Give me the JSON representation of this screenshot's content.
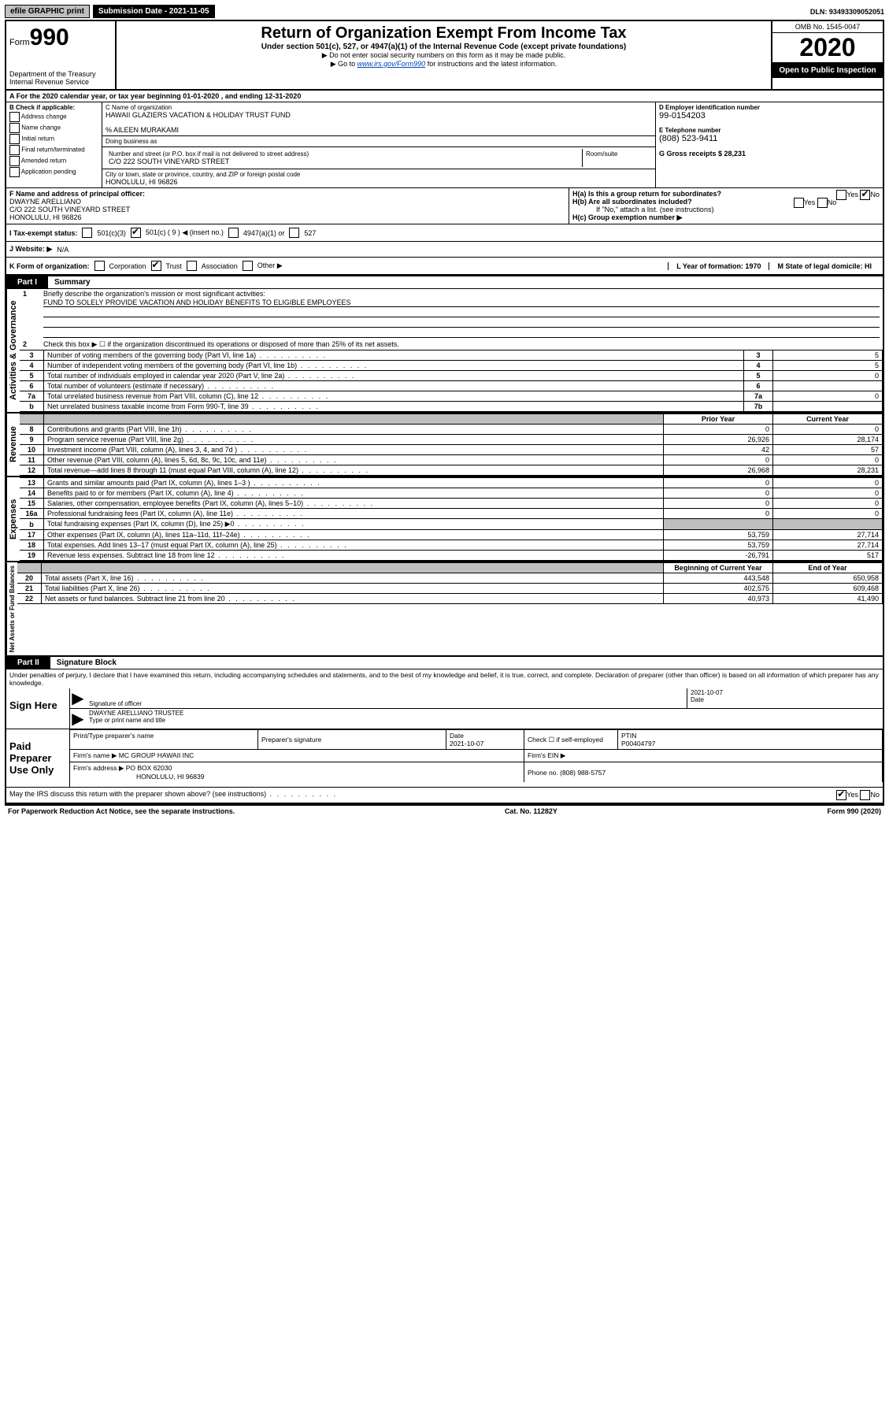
{
  "topbar": {
    "efile": "efile GRAPHIC print",
    "submission_label": "Submission Date - 2021-11-05",
    "dln": "DLN: 93493309052051"
  },
  "header": {
    "form_label": "Form",
    "form_num": "990",
    "dept": "Department of the Treasury\nInternal Revenue Service",
    "title": "Return of Organization Exempt From Income Tax",
    "subtitle": "Under section 501(c), 527, or 4947(a)(1) of the Internal Revenue Code (except private foundations)",
    "note1": "▶ Do not enter social security numbers on this form as it may be made public.",
    "note2_pre": "▶ Go to ",
    "note2_link": "www.irs.gov/Form990",
    "note2_post": " for instructions and the latest information.",
    "omb": "OMB No. 1545-0047",
    "year": "2020",
    "inspect": "Open to Public Inspection"
  },
  "row_a": "A For the 2020 calendar year, or tax year beginning 01-01-2020    , and ending 12-31-2020",
  "box_b": {
    "label": "B Check if applicable:",
    "items": [
      "Address change",
      "Name change",
      "Initial return",
      "Final return/terminated",
      "Amended return",
      "Application pending"
    ]
  },
  "box_c": {
    "name_lbl": "C Name of organization",
    "name": "HAWAII GLAZIERS VACATION & HOLIDAY TRUST FUND",
    "care_of": "% AILEEN MURAKAMI",
    "dba_lbl": "Doing business as",
    "addr_lbl": "Number and street (or P.O. box if mail is not delivered to street address)",
    "room_lbl": "Room/suite",
    "addr": "C/O 222 SOUTH VINEYARD STREET",
    "city_lbl": "City or town, state or province, country, and ZIP or foreign postal code",
    "city": "HONOLULU, HI  96826"
  },
  "box_d": {
    "ein_lbl": "D Employer identification number",
    "ein": "99-0154203",
    "phone_lbl": "E Telephone number",
    "phone": "(808) 523-9411",
    "gross_lbl": "G Gross receipts $ 28,231"
  },
  "box_f": {
    "lbl": "F Name and address of principal officer:",
    "name": "DWAYNE ARELLIANO",
    "addr1": "C/O 222 SOUTH VINEYARD STREET",
    "addr2": "HONOLULU, HI  96826"
  },
  "box_h": {
    "ha": "H(a)  Is this a group return for subordinates?",
    "hb": "H(b)  Are all subordinates included?",
    "hb_note": "If \"No,\" attach a list. (see instructions)",
    "hc": "H(c)  Group exemption number ▶"
  },
  "tax_status": {
    "lbl": "I  Tax-exempt status:",
    "o1": "501(c)(3)",
    "o2": "501(c) ( 9 ) ◀ (insert no.)",
    "o3": "4947(a)(1) or",
    "o4": "527"
  },
  "website": {
    "lbl": "J  Website: ▶",
    "val": "N/A"
  },
  "row_k": {
    "lbl": "K Form of organization:",
    "opts": [
      "Corporation",
      "Trust",
      "Association",
      "Other ▶"
    ],
    "year_lbl": "L Year of formation: 1970",
    "state_lbl": "M State of legal domicile: HI"
  },
  "part1": {
    "tab": "Part I",
    "title": "Summary",
    "line1": "Briefly describe the organization's mission or most significant activities:",
    "line1_val": "FUND TO SOLELY PROVIDE VACATION AND HOLIDAY BENEFITS TO ELIGIBLE EMPLOYEES",
    "line2": "Check this box ▶ ☐  if the organization discontinued its operations or disposed of more than 25% of its net assets.",
    "gov_label": "Activities & Governance",
    "rev_label": "Revenue",
    "exp_label": "Expenses",
    "net_label": "Net Assets or Fund Balances",
    "gov_rows": [
      {
        "n": "3",
        "t": "Number of voting members of the governing body (Part VI, line 1a)",
        "b": "3",
        "v": "5"
      },
      {
        "n": "4",
        "t": "Number of independent voting members of the governing body (Part VI, line 1b)",
        "b": "4",
        "v": "5"
      },
      {
        "n": "5",
        "t": "Total number of individuals employed in calendar year 2020 (Part V, line 2a)",
        "b": "5",
        "v": "0"
      },
      {
        "n": "6",
        "t": "Total number of volunteers (estimate if necessary)",
        "b": "6",
        "v": ""
      },
      {
        "n": "7a",
        "t": "Total unrelated business revenue from Part VIII, column (C), line 12",
        "b": "7a",
        "v": "0"
      },
      {
        "n": "b",
        "t": "Net unrelated business taxable income from Form 990-T, line 39",
        "b": "7b",
        "v": ""
      }
    ],
    "col_hdr": {
      "prior": "Prior Year",
      "current": "Current Year"
    },
    "rev_rows": [
      {
        "n": "8",
        "t": "Contributions and grants (Part VIII, line 1h)",
        "p": "0",
        "c": "0"
      },
      {
        "n": "9",
        "t": "Program service revenue (Part VIII, line 2g)",
        "p": "26,926",
        "c": "28,174"
      },
      {
        "n": "10",
        "t": "Investment income (Part VIII, column (A), lines 3, 4, and 7d )",
        "p": "42",
        "c": "57"
      },
      {
        "n": "11",
        "t": "Other revenue (Part VIII, column (A), lines 5, 6d, 8c, 9c, 10c, and 11e)",
        "p": "0",
        "c": "0"
      },
      {
        "n": "12",
        "t": "Total revenue—add lines 8 through 11 (must equal Part VIII, column (A), line 12)",
        "p": "26,968",
        "c": "28,231"
      }
    ],
    "exp_rows": [
      {
        "n": "13",
        "t": "Grants and similar amounts paid (Part IX, column (A), lines 1–3 )",
        "p": "0",
        "c": "0"
      },
      {
        "n": "14",
        "t": "Benefits paid to or for members (Part IX, column (A), line 4)",
        "p": "0",
        "c": "0"
      },
      {
        "n": "15",
        "t": "Salaries, other compensation, employee benefits (Part IX, column (A), lines 5–10)",
        "p": "0",
        "c": "0"
      },
      {
        "n": "16a",
        "t": "Professional fundraising fees (Part IX, column (A), line 11e)",
        "p": "0",
        "c": "0"
      },
      {
        "n": "b",
        "t": "Total fundraising expenses (Part IX, column (D), line 25) ▶0",
        "p": "",
        "c": "",
        "gray": true
      },
      {
        "n": "17",
        "t": "Other expenses (Part IX, column (A), lines 11a–11d, 11f–24e)",
        "p": "53,759",
        "c": "27,714"
      },
      {
        "n": "18",
        "t": "Total expenses. Add lines 13–17 (must equal Part IX, column (A), line 25)",
        "p": "53,759",
        "c": "27,714"
      },
      {
        "n": "19",
        "t": "Revenue less expenses. Subtract line 18 from line 12",
        "p": "-26,791",
        "c": "517"
      }
    ],
    "net_hdr": {
      "begin": "Beginning of Current Year",
      "end": "End of Year"
    },
    "net_rows": [
      {
        "n": "20",
        "t": "Total assets (Part X, line 16)",
        "p": "443,548",
        "c": "650,958"
      },
      {
        "n": "21",
        "t": "Total liabilities (Part X, line 26)",
        "p": "402,575",
        "c": "609,468"
      },
      {
        "n": "22",
        "t": "Net assets or fund balances. Subtract line 21 from line 20",
        "p": "40,973",
        "c": "41,490"
      }
    ]
  },
  "part2": {
    "tab": "Part II",
    "title": "Signature Block",
    "penalty": "Under penalties of perjury, I declare that I have examined this return, including accompanying schedules and statements, and to the best of my knowledge and belief, it is true, correct, and complete. Declaration of preparer (other than officer) is based on all information of which preparer has any knowledge.",
    "sign_here": "Sign Here",
    "sig_officer": "Signature of officer",
    "sig_date": "2021-10-07",
    "date_lbl": "Date",
    "sig_name": "DWAYNE ARELLIANO  TRUSTEE",
    "sig_type": "Type or print name and title",
    "paid": "Paid Preparer Use Only",
    "prep_name_lbl": "Print/Type preparer's name",
    "prep_sig_lbl": "Preparer's signature",
    "prep_date_lbl": "Date",
    "prep_date": "2021-10-07",
    "self_emp": "Check ☐  if self-employed",
    "ptin_lbl": "PTIN",
    "ptin": "P00404797",
    "firm_name_lbl": "Firm's name    ▶",
    "firm_name": "MC GROUP HAWAII INC",
    "firm_ein_lbl": "Firm's EIN ▶",
    "firm_addr_lbl": "Firm's address ▶",
    "firm_addr1": "PO BOX 62030",
    "firm_addr2": "HONOLULU, HI  96839",
    "firm_phone_lbl": "Phone no. (808) 988-5757",
    "discuss": "May the IRS discuss this return with the preparer shown above? (see instructions)"
  },
  "footer": {
    "left": "For Paperwork Reduction Act Notice, see the separate instructions.",
    "mid": "Cat. No. 11282Y",
    "right": "Form 990 (2020)"
  }
}
